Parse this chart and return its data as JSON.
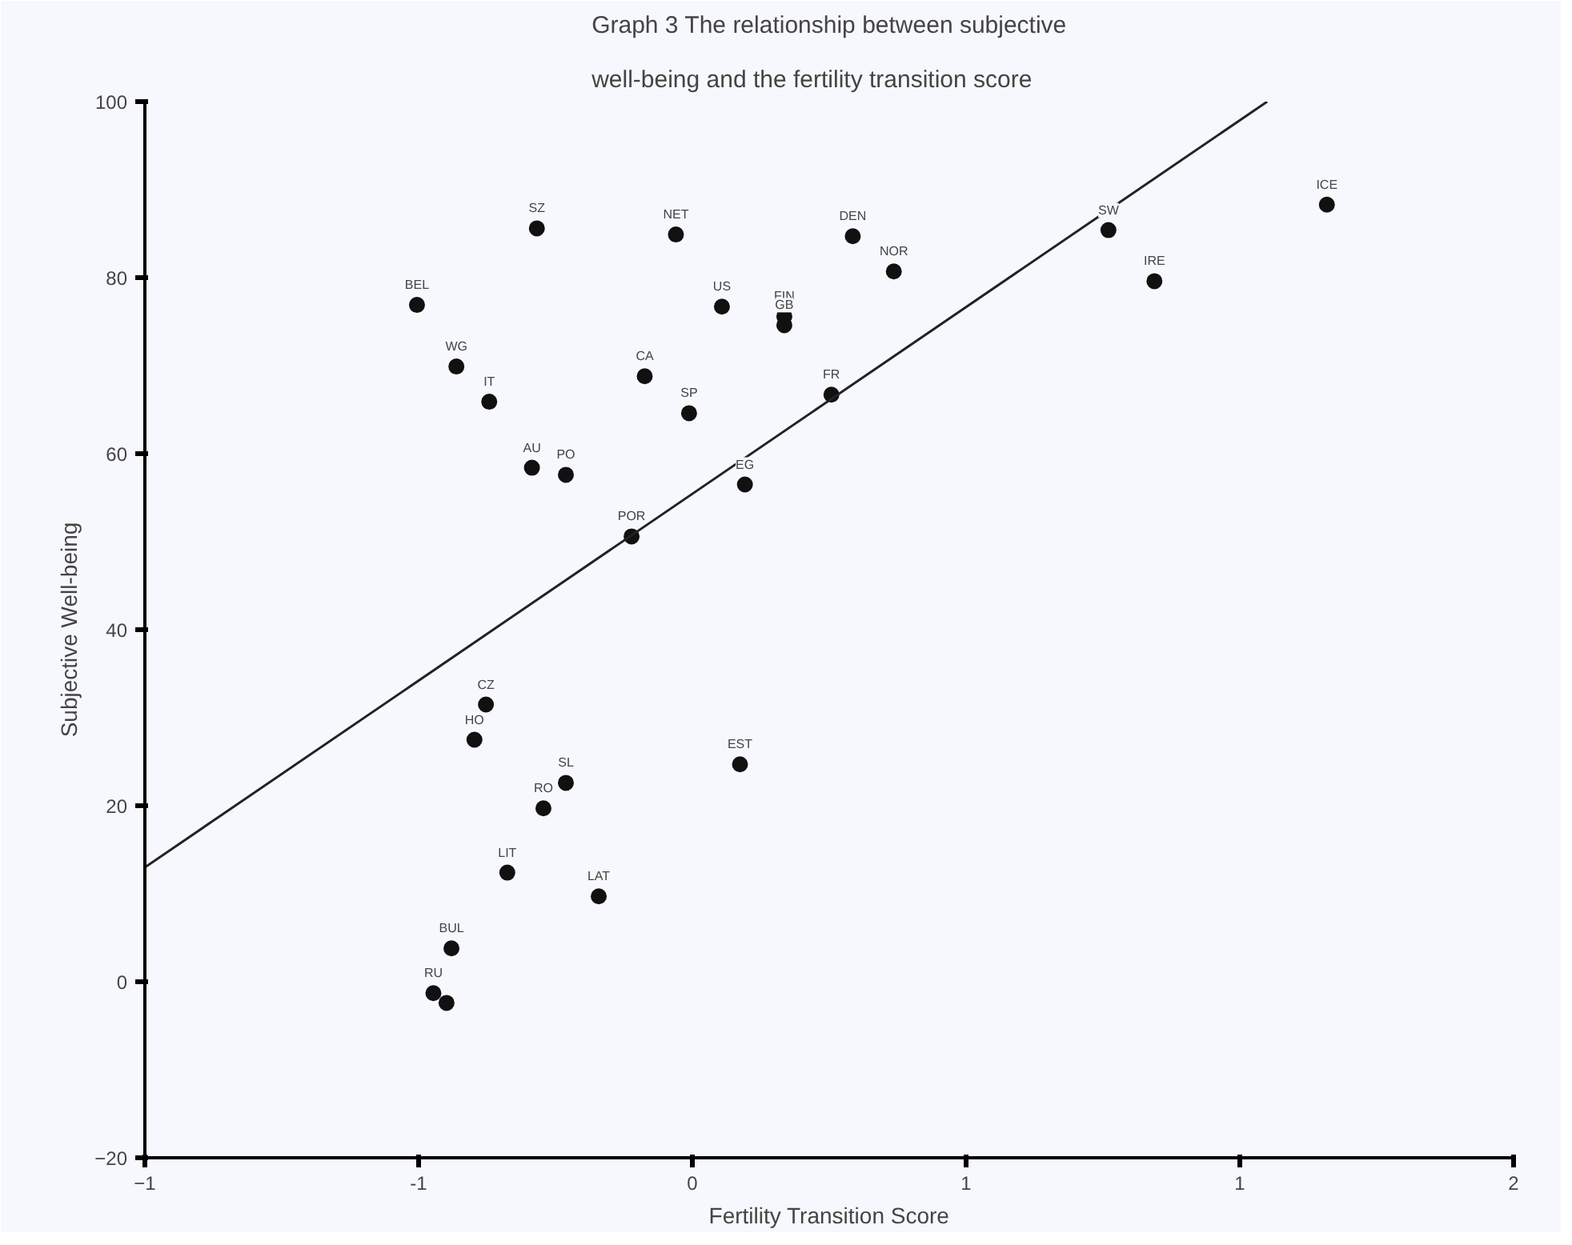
{
  "chart_data": {
    "type": "scatter",
    "title": "Graph 3 The relationship between subjective well-being and the fertility transition score",
    "xlabel": "Fertility Transition Score",
    "ylabel": "Subjective Well-being",
    "xlim": [
      -1,
      1.5
    ],
    "xticks": [
      -1,
      {
        "value": -0.5,
        "label": "-1"
      },
      0,
      {
        "value": 0.5,
        "label": "1"
      },
      1,
      {
        "value": 1.5,
        "label": "2"
      }
    ],
    "ylim": [
      -20,
      100
    ],
    "yticks": [
      -20,
      0,
      20,
      40,
      60,
      80,
      100
    ],
    "grid": false,
    "marker": "circle",
    "series": [
      {
        "color": "#111111",
        "x": [
          -0.503,
          -0.431,
          -0.371,
          -0.284,
          -0.293,
          -0.231,
          -0.087,
          -0.006,
          -0.111,
          -0.03,
          0.054,
          0.168,
          0.168,
          0.293,
          0.368,
          0.254,
          0.096,
          0.76,
          0.844,
          1.159,
          -0.377,
          -0.398,
          -0.231,
          -0.272,
          -0.338,
          -0.171,
          0.087,
          -0.44,
          -0.473,
          -0.449
        ],
        "values": [
          76.9,
          69.9,
          65.9,
          85.6,
          58.4,
          57.6,
          68.8,
          64.6,
          50.6,
          84.9,
          76.7,
          75.6,
          74.6,
          84.7,
          80.7,
          66.7,
          56.5,
          85.4,
          79.6,
          88.3,
          31.5,
          27.5,
          22.6,
          19.7,
          12.4,
          9.7,
          24.7,
          3.8,
          -1.3,
          -2.4
        ]
      },
      {
        "type": "line",
        "color": "#222222",
        "marker": "none",
        "x": [
          -1,
          1.05
        ],
        "values": [
          13,
          100
        ]
      }
    ],
    "annotations": [
      {
        "text": "BEL",
        "x": -0.503,
        "y": 76.9
      },
      {
        "text": "WG",
        "x": -0.431,
        "y": 69.9
      },
      {
        "text": "IT",
        "x": -0.371,
        "y": 65.9
      },
      {
        "text": "SZ",
        "x": -0.284,
        "y": 85.6
      },
      {
        "text": "AU",
        "x": -0.293,
        "y": 58.4
      },
      {
        "text": "PO",
        "x": -0.231,
        "y": 57.6
      },
      {
        "text": "CA",
        "x": -0.087,
        "y": 68.8
      },
      {
        "text": "SP",
        "x": -0.006,
        "y": 64.6
      },
      {
        "text": "POR",
        "x": -0.111,
        "y": 50.6
      },
      {
        "text": "NET",
        "x": -0.03,
        "y": 84.9
      },
      {
        "text": "US",
        "x": 0.054,
        "y": 76.7
      },
      {
        "text": "FIN",
        "x": 0.168,
        "y": 75.6
      },
      {
        "text": "GB",
        "x": 0.168,
        "y": 74.6
      },
      {
        "text": "DEN",
        "x": 0.293,
        "y": 84.7
      },
      {
        "text": "NOR",
        "x": 0.368,
        "y": 80.7
      },
      {
        "text": "FR",
        "x": 0.254,
        "y": 66.7
      },
      {
        "text": "EG",
        "x": 0.096,
        "y": 56.5
      },
      {
        "text": "SW",
        "x": 0.76,
        "y": 85.4
      },
      {
        "text": "IRE",
        "x": 0.844,
        "y": 79.6
      },
      {
        "text": "ICE",
        "x": 1.159,
        "y": 88.3
      },
      {
        "text": "CZ",
        "x": -0.377,
        "y": 31.5
      },
      {
        "text": "HO",
        "x": -0.398,
        "y": 27.5
      },
      {
        "text": "SL",
        "x": -0.231,
        "y": 22.6
      },
      {
        "text": "RO",
        "x": -0.272,
        "y": 19.7
      },
      {
        "text": "LIT",
        "x": -0.338,
        "y": 12.4
      },
      {
        "text": "LAT",
        "x": -0.171,
        "y": 9.7
      },
      {
        "text": "EST",
        "x": 0.087,
        "y": 24.7
      },
      {
        "text": "BUL",
        "x": -0.44,
        "y": 3.8
      },
      {
        "text": "RU",
        "x": -0.473,
        "y": -1.3
      }
    ]
  }
}
